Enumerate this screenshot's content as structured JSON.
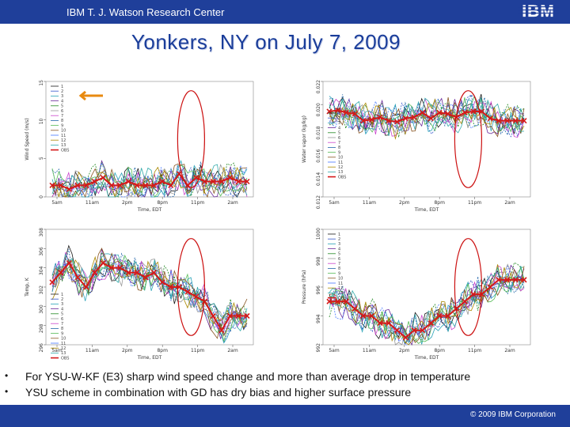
{
  "header": {
    "title": "IBM T. J. Watson Research Center",
    "logo_text": "IBM"
  },
  "slide": {
    "title": "Yonkers, NY on July 7, 2009"
  },
  "bullets": [
    "For YSU-W-KF (E3) sharp wind speed change and more than average drop in temperature",
    "YSU scheme in combination with GD has dry bias and higher surface pressure"
  ],
  "footer": {
    "copyright": "© 2009 IBM Corporation"
  },
  "colors": {
    "brand_blue": "#1f3f9a",
    "title_blue": "#1a3d9a",
    "obs_red": "#d41a1a",
    "ellipse_red": "#cc1111",
    "arrow_orange": "#e88a10"
  },
  "chart_data": [
    {
      "type": "line",
      "name": "wind-speed",
      "xlabel": "Time, EDT",
      "ylabel": "Wind Speed (m/s)",
      "x_ticks": [
        "5am",
        "11am",
        "2pm",
        "8pm",
        "11pm",
        "2am"
      ],
      "y_ticks": [
        "0",
        "5",
        "10",
        "15"
      ],
      "ylim": [
        0,
        15
      ],
      "legend": [
        "1",
        "2",
        "3",
        "4",
        "5",
        "6",
        "7",
        "8",
        "9",
        "10",
        "11",
        "12",
        "13",
        "OBS"
      ],
      "legend_position": "top-left",
      "observations": [
        1.5,
        1.5,
        1,
        1.5,
        1.5,
        2,
        2.5,
        1.5,
        1.5,
        2,
        1.5,
        1.5,
        1.5,
        2,
        1.5,
        3,
        1.5,
        2.5,
        2,
        2,
        2,
        2.5,
        2,
        2
      ]
    },
    {
      "type": "line",
      "name": "water-vapor",
      "xlabel": "Time, EDT",
      "ylabel": "Water vapor (kg/kg)",
      "x_ticks": [
        "5am",
        "11am",
        "2pm",
        "8pm",
        "11pm",
        "2am"
      ],
      "y_ticks": [
        "0.012",
        "0.014",
        "0.016",
        "0.018",
        "0.020",
        "0.022"
      ],
      "ylim": [
        0.012,
        0.022
      ],
      "legend": [
        "1",
        "2",
        "3",
        "4",
        "5",
        "6",
        "7",
        "8",
        "9",
        "10",
        "11",
        "12",
        "13",
        "OBS"
      ],
      "legend_position": "center-left",
      "observations": [
        0.0194,
        0.0195,
        0.0193,
        0.0192,
        0.0186,
        0.0187,
        0.0189,
        0.0186,
        0.0185,
        0.0188,
        0.0189,
        0.0193,
        0.0188,
        0.0193,
        0.0192,
        0.0189,
        0.0193,
        0.0194,
        0.0194,
        0.0188,
        0.0186,
        0.0186,
        0.0186,
        0.0186
      ]
    },
    {
      "type": "line",
      "name": "temperature",
      "xlabel": "Time, EDT",
      "ylabel": "Temp, K",
      "x_ticks": [
        "5am",
        "11am",
        "2pm",
        "8pm",
        "11pm",
        "2am"
      ],
      "y_ticks": [
        "296",
        "298",
        "300",
        "302",
        "304",
        "306",
        "308"
      ],
      "ylim": [
        296,
        308
      ],
      "legend": [
        "1",
        "2",
        "3",
        "4",
        "5",
        "6",
        "7",
        "8",
        "9",
        "10",
        "11",
        "12",
        "13",
        "OBS"
      ],
      "legend_position": "bottom-left",
      "observations": [
        302.5,
        303.5,
        304.5,
        303,
        302,
        303.5,
        304.5,
        304,
        304,
        303.5,
        303.5,
        303,
        303.5,
        302.5,
        302,
        302,
        301.5,
        301,
        300.5,
        299,
        297.5,
        299,
        299,
        299
      ]
    },
    {
      "type": "line",
      "name": "pressure",
      "xlabel": "Time, EDT",
      "ylabel": "Pressure (hPa)",
      "x_ticks": [
        "5am",
        "11am",
        "2pm",
        "8pm",
        "11pm",
        "2am"
      ],
      "y_ticks": [
        "992",
        "994",
        "996",
        "998",
        "1000"
      ],
      "ylim": [
        992,
        1000
      ],
      "legend": [
        "1",
        "2",
        "3",
        "4",
        "5",
        "6",
        "7",
        "8",
        "9",
        "10",
        "11",
        "12",
        "13",
        "OBS"
      ],
      "legend_position": "top-left",
      "observations": [
        995,
        995,
        995,
        994.5,
        994,
        994,
        993.5,
        993.5,
        993,
        992.5,
        993,
        993,
        993.5,
        994,
        994,
        994.5,
        995,
        995.5,
        995.5,
        996,
        996.5,
        996.5,
        996.5,
        996.5
      ]
    }
  ]
}
